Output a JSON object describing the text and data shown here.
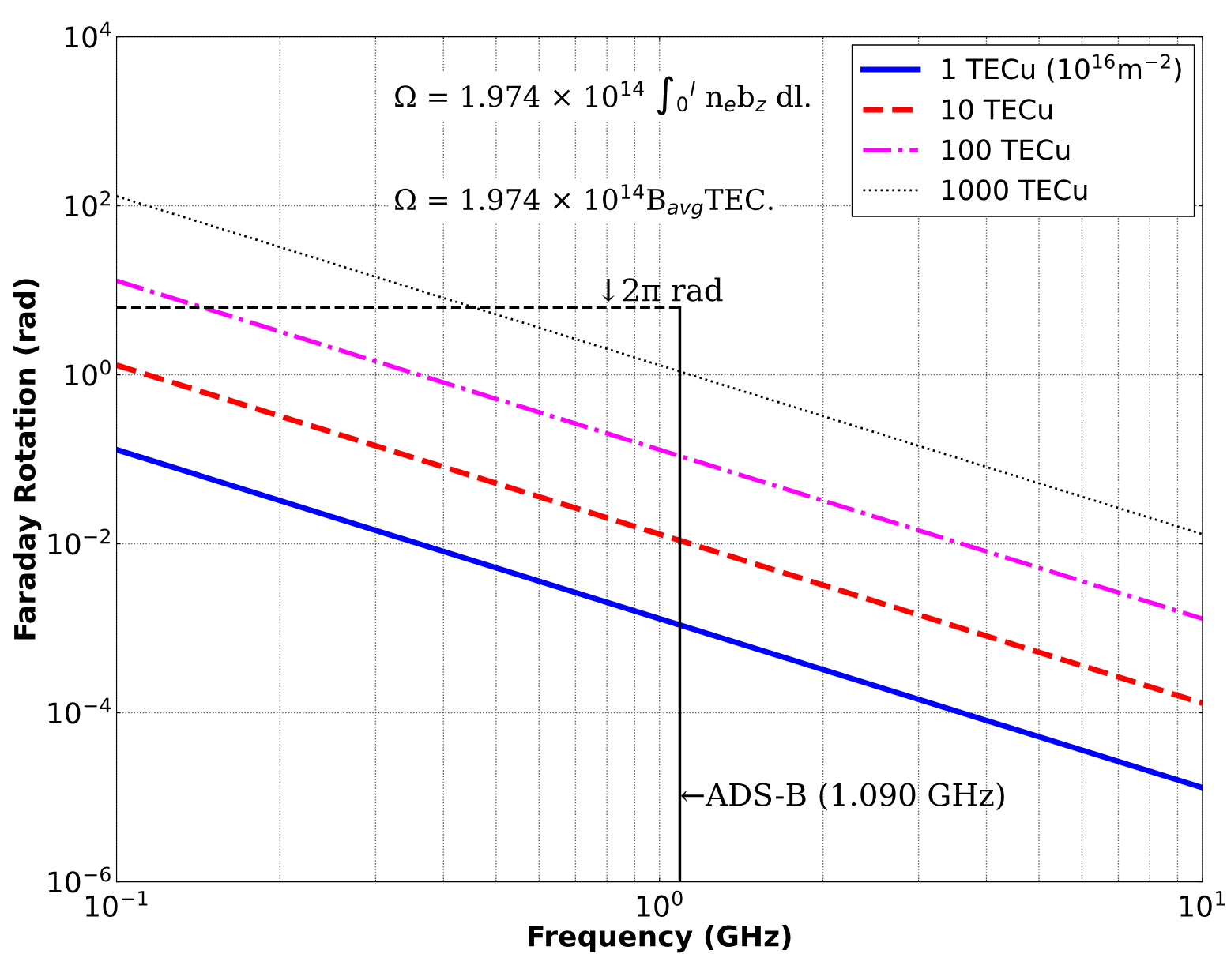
{
  "chart_data": {
    "type": "line",
    "xlabel": "Frequency (GHz)",
    "ylabel": "Faraday Rotation (rad)",
    "log": "xy",
    "grid": true,
    "legend": "top right",
    "xlim": [
      0.1,
      10
    ],
    "xticks": [
      {
        "value": 0.1,
        "label": "10$^{−1}$"
      },
      {
        "value": 1,
        "label": "10$^{0}$"
      },
      {
        "value": 10,
        "label": "10$^{1}$"
      }
    ],
    "ylim": [
      1e-06,
      10000
    ],
    "yticks": [
      {
        "value": 1e-06,
        "label": "10$^{−6}$"
      },
      {
        "value": 0.0001,
        "label": "10$^{−4}$"
      },
      {
        "value": 0.01,
        "label": "10$^{−2}$"
      },
      {
        "value": 1,
        "label": "10$^{0}$"
      },
      {
        "value": 100,
        "label": "10$^{2}$"
      },
      {
        "value": 10000,
        "label": "10$^{4}$"
      }
    ],
    "x": [
      0.1,
      1,
      10
    ],
    "series": [
      {
        "name": "1 TECu (10$^{16}$m$^{−2}$)",
        "color": "#0000ff",
        "values": [
          0.13,
          0.0013,
          1.3e-05
        ],
        "line_style": "solid"
      },
      {
        "name": "10 TECu",
        "color": "#ff0000",
        "values": [
          1.3,
          0.013,
          0.00013
        ],
        "line_style": "dashed"
      },
      {
        "name": "100 TECu",
        "color": "#ff00ff",
        "values": [
          13,
          0.13,
          0.0013
        ],
        "line_style": "dashdot"
      },
      {
        "name": "1000 TECu",
        "color": "#000000",
        "values": [
          130,
          1.3,
          0.013
        ],
        "line_style": "dotted"
      }
    ],
    "ref_lines": [
      {
        "axis": "y",
        "value": 6.28,
        "color": "#000000",
        "line_style": "dashed"
      },
      {
        "axis": "x",
        "value": 1.09,
        "color": "#000000",
        "line_style": "solid"
      }
    ],
    "annotations": [
      {
        "text": "↓2π rad",
        "x": 1.0,
        "y": 6.28
      },
      {
        "text": "←ADS-B (1.090 GHz)",
        "x": 1.09,
        "y": 1e-05
      },
      "Ω = 1.974 × 10$^{14}$ ∫$_{0}$$^{l}$ n$_{e}$b$_{z}$ dl.",
      "Ω = 1.974 × 10$^{14}$B$_{avg}$TEC."
    ]
  }
}
